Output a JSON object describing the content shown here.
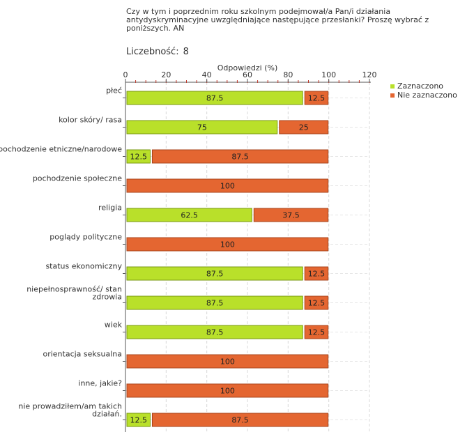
{
  "question": "Czy w tym i poprzednim roku szkolnym podejmował/a Pan/i działania antydyskryminacyjne uwzględniające następujące przesłanki? Proszę wybrać z poniższych. AN",
  "count_label": "Liczebność:",
  "count_value": "8",
  "chart_data": {
    "type": "bar",
    "orientation": "horizontal",
    "stacked": true,
    "xlabel": "Odpowiedzi (%)",
    "xlim": [
      0,
      120
    ],
    "xticks": [
      0,
      20,
      40,
      60,
      80,
      100,
      120
    ],
    "grid": true,
    "legend_position": "top-right",
    "categories": [
      [
        "płeć"
      ],
      [
        "kolor skóry/ rasa"
      ],
      [
        "pochodzenie etniczne/narodowe"
      ],
      [
        "pochodzenie społeczne"
      ],
      [
        "religia"
      ],
      [
        "poglądy polityczne"
      ],
      [
        "status ekonomiczny"
      ],
      [
        "niepełnosprawność/ stan",
        "zdrowia"
      ],
      [
        "wiek"
      ],
      [
        "orientacja seksualna"
      ],
      [
        "inne, jakie?"
      ],
      [
        "nie prowadziłem/am takich",
        "działań."
      ]
    ],
    "series": [
      {
        "name": "Zaznaczono",
        "color": "#b9e02a",
        "border": "#7a9a10",
        "values": [
          87.5,
          75,
          12.5,
          0,
          62.5,
          0,
          87.5,
          87.5,
          87.5,
          0,
          0,
          12.5
        ]
      },
      {
        "name": "Nie zaznaczono",
        "color": "#e46631",
        "border": "#a8441c",
        "values": [
          12.5,
          25,
          87.5,
          100,
          37.5,
          100,
          12.5,
          12.5,
          12.5,
          100,
          100,
          87.5
        ]
      }
    ]
  }
}
